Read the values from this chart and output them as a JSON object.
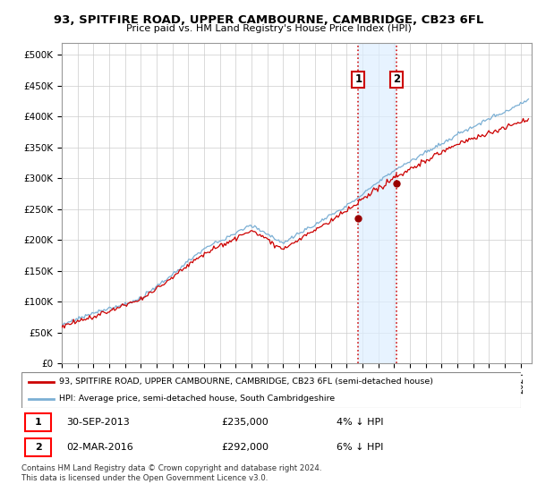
{
  "title1": "93, SPITFIRE ROAD, UPPER CAMBOURNE, CAMBRIDGE, CB23 6FL",
  "title2": "Price paid vs. HM Land Registry's House Price Index (HPI)",
  "yticks": [
    0,
    50000,
    100000,
    150000,
    200000,
    250000,
    300000,
    350000,
    400000,
    450000,
    500000
  ],
  "ytick_labels": [
    "£0",
    "£50K",
    "£100K",
    "£150K",
    "£200K",
    "£250K",
    "£300K",
    "£350K",
    "£400K",
    "£450K",
    "£500K"
  ],
  "xlim_start": 1995.0,
  "xlim_end": 2024.7,
  "ylim_min": 0,
  "ylim_max": 520000,
  "hpi_color": "#7bafd4",
  "price_color": "#cc0000",
  "sale1_date": 2013.75,
  "sale1_price": 235000,
  "sale1_label": "1",
  "sale2_date": 2016.17,
  "sale2_price": 292000,
  "sale2_label": "2",
  "shade_color": "#ddeeff",
  "legend_line1": "93, SPITFIRE ROAD, UPPER CAMBOURNE, CAMBRIDGE, CB23 6FL (semi-detached house)",
  "legend_line2": "HPI: Average price, semi-detached house, South Cambridgeshire",
  "table_row1": [
    "1",
    "30-SEP-2013",
    "£235,000",
    "4% ↓ HPI"
  ],
  "table_row2": [
    "2",
    "02-MAR-2016",
    "£292,000",
    "6% ↓ HPI"
  ],
  "footer": "Contains HM Land Registry data © Crown copyright and database right 2024.\nThis data is licensed under the Open Government Licence v3.0."
}
